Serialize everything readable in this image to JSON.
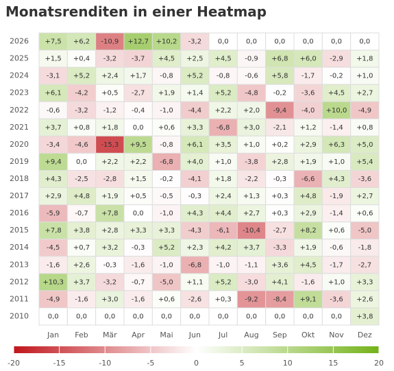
{
  "chart_data": {
    "type": "heatmap",
    "title": "Monatsrenditen in einer Heatmap",
    "x": [
      "Jan",
      "Feb",
      "Mär",
      "Apr",
      "Mai",
      "Jun",
      "Jul",
      "Aug",
      "Sep",
      "Okt",
      "Nov",
      "Dez"
    ],
    "y": [
      "2026",
      "2025",
      "2024",
      "2023",
      "2022",
      "2021",
      "2020",
      "2019",
      "2018",
      "2017",
      "2016",
      "2015",
      "2014",
      "2013",
      "2012",
      "2011",
      "2010"
    ],
    "values": [
      [
        7.5,
        6.2,
        -10.9,
        12.7,
        10.2,
        -3.2,
        0,
        0,
        0,
        0,
        0,
        0
      ],
      [
        1.5,
        0.4,
        -3.2,
        -3.7,
        4.5,
        2.5,
        4.5,
        -0.9,
        6.8,
        6.0,
        -2.9,
        1.8
      ],
      [
        -3.1,
        5.2,
        2.4,
        1.7,
        -0.8,
        5.2,
        -0.8,
        -0.6,
        5.8,
        -1.7,
        -0.2,
        1.0
      ],
      [
        6.1,
        -4.2,
        0.5,
        -2.7,
        1.9,
        1.4,
        5.2,
        -4.8,
        -0.2,
        -3.6,
        4.5,
        2.7
      ],
      [
        -0.6,
        -3.2,
        -1.2,
        -0.4,
        -1.0,
        -4.4,
        2.2,
        2.0,
        -9.4,
        -4.0,
        10.0,
        -4.9
      ],
      [
        3.7,
        0.8,
        1.8,
        0,
        0.6,
        3.3,
        -6.8,
        3.0,
        -2.1,
        1.2,
        -1.4,
        0.8
      ],
      [
        -3.4,
        -4.6,
        -15.3,
        9.5,
        -0.8,
        6.1,
        3.5,
        1.0,
        0.2,
        2.9,
        6.3,
        5.0
      ],
      [
        9.4,
        0,
        2.2,
        2.2,
        -6.8,
        4.0,
        1.0,
        -3.8,
        2.8,
        1.9,
        1.0,
        5.4
      ],
      [
        4.3,
        -2.5,
        -2.8,
        1.5,
        -0.2,
        -4.1,
        1.8,
        -2.2,
        -0.3,
        -6.6,
        4.3,
        -3.6
      ],
      [
        2.9,
        4.8,
        1.9,
        0.5,
        -0.5,
        -0.3,
        2.4,
        1.3,
        0.3,
        4.8,
        -1.9,
        2.7
      ],
      [
        -5.9,
        -0.7,
        7.8,
        0,
        -1.0,
        4.3,
        4.4,
        2.7,
        0.3,
        2.9,
        -1.4,
        0.6
      ],
      [
        7.8,
        3.8,
        2.8,
        3.3,
        3.3,
        -4.3,
        -6.1,
        -10.4,
        -2.7,
        8.2,
        0.6,
        -5.0
      ],
      [
        -4.5,
        0.7,
        3.2,
        -0.3,
        5.2,
        2.3,
        4.2,
        3.7,
        -3.3,
        1.9,
        -0.6,
        -1.8
      ],
      [
        -1.6,
        2.6,
        -0.3,
        -1.6,
        -1.0,
        -6.8,
        -1.0,
        -1.1,
        3.6,
        4.5,
        -1.7,
        -2.7
      ],
      [
        10.3,
        3.7,
        -3.2,
        -0.7,
        -5.0,
        1.1,
        5.2,
        -3.0,
        4.1,
        -1.6,
        1.0,
        3.3
      ],
      [
        -4.9,
        -1.6,
        3.0,
        -1.6,
        0.6,
        -2.6,
        0.3,
        -9.2,
        -8.4,
        9.1,
        -3.6,
        2.6
      ],
      [
        0,
        0,
        0,
        0,
        0,
        0,
        0,
        0,
        0,
        0,
        0,
        3.8
      ]
    ],
    "value_labels": [
      [
        "+7,5",
        "+6,2",
        "-10,9",
        "+12,7",
        "+10,2",
        "-3,2",
        "0,0",
        "0,0",
        "0,0",
        "0,0",
        "0,0",
        "0,0"
      ],
      [
        "+1,5",
        "+0,4",
        "-3,2",
        "-3,7",
        "+4,5",
        "+2,5",
        "+4,5",
        "-0,9",
        "+6,8",
        "+6,0",
        "-2,9",
        "+1,8"
      ],
      [
        "-3,1",
        "+5,2",
        "+2,4",
        "+1,7",
        "-0,8",
        "+5,2",
        "-0,8",
        "-0,6",
        "+5,8",
        "-1,7",
        "-0,2",
        "+1,0"
      ],
      [
        "+6,1",
        "-4,2",
        "+0,5",
        "-2,7",
        "+1,9",
        "+1,4",
        "+5,2",
        "-4,8",
        "-0,2",
        "-3,6",
        "+4,5",
        "+2,7"
      ],
      [
        "-0,6",
        "-3,2",
        "-1,2",
        "-0,4",
        "-1,0",
        "-4,4",
        "+2,2",
        "+2,0",
        "-9,4",
        "-4,0",
        "+10,0",
        "-4,9"
      ],
      [
        "+3,7",
        "+0,8",
        "+1,8",
        "0,0",
        "+0,6",
        "+3,3",
        "-6,8",
        "+3,0",
        "-2,1",
        "+1,2",
        "-1,4",
        "+0,8"
      ],
      [
        "-3,4",
        "-4,6",
        "-15,3",
        "+9,5",
        "-0,8",
        "+6,1",
        "+3,5",
        "+1,0",
        "+0,2",
        "+2,9",
        "+6,3",
        "+5,0"
      ],
      [
        "+9,4",
        "0,0",
        "+2,2",
        "+2,2",
        "-6,8",
        "+4,0",
        "+1,0",
        "-3,8",
        "+2,8",
        "+1,9",
        "+1,0",
        "+5,4"
      ],
      [
        "+4,3",
        "-2,5",
        "-2,8",
        "+1,5",
        "-0,2",
        "-4,1",
        "+1,8",
        "-2,2",
        "-0,3",
        "-6,6",
        "+4,3",
        "-3,6"
      ],
      [
        "+2,9",
        "+4,8",
        "+1,9",
        "+0,5",
        "-0,5",
        "-0,3",
        "+2,4",
        "+1,3",
        "+0,3",
        "+4,8",
        "-1,9",
        "+2,7"
      ],
      [
        "-5,9",
        "-0,7",
        "+7,8",
        "0,0",
        "-1,0",
        "+4,3",
        "+4,4",
        "+2,7",
        "+0,3",
        "+2,9",
        "-1,4",
        "+0,6"
      ],
      [
        "+7,8",
        "+3,8",
        "+2,8",
        "+3,3",
        "+3,3",
        "-4,3",
        "-6,1",
        "-10,4",
        "-2,7",
        "+8,2",
        "+0,6",
        "-5,0"
      ],
      [
        "-4,5",
        "+0,7",
        "+3,2",
        "-0,3",
        "+5,2",
        "+2,3",
        "+4,2",
        "+3,7",
        "-3,3",
        "+1,9",
        "-0,6",
        "-1,8"
      ],
      [
        "-1,6",
        "+2,6",
        "-0,3",
        "-1,6",
        "-1,0",
        "-6,8",
        "-1,0",
        "-1,1",
        "+3,6",
        "+4,5",
        "-1,7",
        "-2,7"
      ],
      [
        "+10,3",
        "+3,7",
        "-3,2",
        "-0,7",
        "-5,0",
        "+1,1",
        "+5,2",
        "-3,0",
        "+4,1",
        "-1,6",
        "+1,0",
        "+3,3"
      ],
      [
        "-4,9",
        "-1,6",
        "+3,0",
        "-1,6",
        "+0,6",
        "-2,6",
        "+0,3",
        "-9,2",
        "-8,4",
        "+9,1",
        "-3,6",
        "+2,6"
      ],
      [
        "0,0",
        "0,0",
        "0,0",
        "0,0",
        "0,0",
        "0,0",
        "0,0",
        "0,0",
        "0,0",
        "0,0",
        "0,0",
        "+3,8"
      ]
    ],
    "zlim": [
      -20,
      20
    ],
    "zticks": [
      -20,
      -15,
      -10,
      -5,
      0,
      5,
      10,
      15,
      20
    ],
    "colors": [
      "#c0161c",
      "#ffffff",
      "#74b21a"
    ]
  }
}
